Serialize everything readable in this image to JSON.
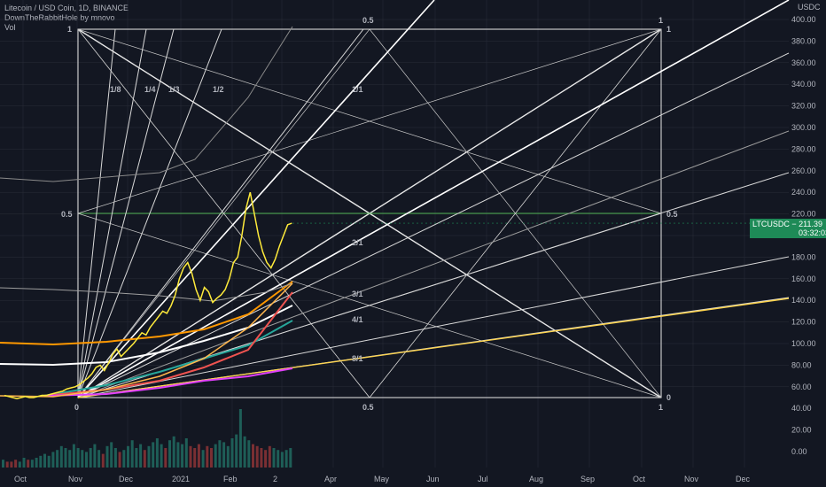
{
  "header": {
    "symbol_line": "Litecoin / USD Coin, 1D, BINANCE",
    "indicator_line": "DownTheRabbitHole by mnovo",
    "volume_line": "Vol",
    "currency": "USDC"
  },
  "price_tag": {
    "symbol": "LTCUSDC",
    "price": "211.39",
    "countdown": "03:32:03",
    "color": "#1e8a57"
  },
  "colors": {
    "background": "#131722",
    "grid": "#2a2e39",
    "up": "#26a69a",
    "down": "#ef5350",
    "level_line": "#4caf50"
  },
  "chart_data": {
    "type": "line",
    "y_axis": {
      "scale": "log",
      "ticks": [
        "400.00",
        "380.00",
        "360.00",
        "340.00",
        "320.00",
        "300.00",
        "280.00",
        "260.00",
        "240.00",
        "220.00",
        "200.00",
        "180.00",
        "160.00",
        "140.00",
        "120.00",
        "100.00",
        "80.00",
        "60.00",
        "40.00",
        "20.00",
        "0.00"
      ]
    },
    "x_axis": {
      "ticks": [
        "Oct",
        "Nov",
        "Dec",
        "2021",
        "Feb",
        "2",
        "Apr",
        "May",
        "Jun",
        "Jul",
        "Aug",
        "Sep",
        "Oct",
        "Nov",
        "Dec"
      ]
    },
    "last_price": 211.39,
    "box_labels": {
      "top_left": "1",
      "top_mid": "0.5",
      "top_right": "1",
      "top_right_outer": "1",
      "mid_left": "0.5",
      "mid_right": "0.5",
      "bottom_left": "0",
      "bottom_mid": "0.5",
      "bottom_right": "0",
      "bottom_right_outer": "1"
    },
    "fan_labels": [
      "1/8",
      "1/4",
      "1/3",
      "1/2",
      "1/1",
      "2/1",
      "3/1",
      "4/1",
      "8/1"
    ],
    "price_series": {
      "name": "LTCUSDC",
      "values": [
        52,
        51,
        50,
        49,
        50,
        51,
        50,
        50,
        51,
        52,
        52,
        53,
        54,
        55,
        56,
        58,
        59,
        60,
        62,
        65,
        68,
        72,
        78,
        80,
        75,
        82,
        90,
        95,
        88,
        92,
        96,
        100,
        105,
        110,
        108,
        115,
        120,
        125,
        130,
        128,
        135,
        145,
        160,
        170,
        175,
        165,
        150,
        140,
        152,
        148,
        138,
        142,
        145,
        150,
        160,
        175,
        180,
        200,
        225,
        240,
        220,
        200,
        185,
        175,
        170,
        178,
        190,
        200,
        210,
        211.39
      ]
    },
    "volume": {
      "values": [
        4,
        3,
        3,
        4,
        3,
        5,
        4,
        4,
        5,
        6,
        7,
        6,
        8,
        9,
        11,
        10,
        9,
        12,
        10,
        9,
        8,
        10,
        12,
        9,
        7,
        11,
        13,
        10,
        8,
        9,
        11,
        14,
        10,
        12,
        9,
        11,
        13,
        15,
        12,
        10,
        14,
        16,
        13,
        12,
        15,
        11,
        10,
        12,
        9,
        11,
        10,
        12,
        14,
        13,
        11,
        15,
        17,
        30,
        16,
        14,
        12,
        11,
        10,
        9,
        11,
        10,
        9,
        8,
        9,
        10
      ]
    }
  }
}
